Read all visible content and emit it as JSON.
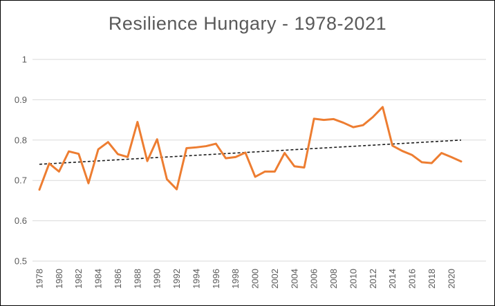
{
  "window": {
    "background": "#ffffff",
    "border_color": "#000000"
  },
  "chart_data": {
    "type": "line",
    "title": "Resilience Hungary - 1978-2021",
    "xlabel": "",
    "ylabel": "",
    "x": [
      1978,
      1979,
      1980,
      1981,
      1982,
      1983,
      1984,
      1985,
      1986,
      1987,
      1988,
      1989,
      1990,
      1991,
      1992,
      1993,
      1994,
      1995,
      1996,
      1997,
      1998,
      1999,
      2000,
      2001,
      2002,
      2003,
      2004,
      2005,
      2006,
      2007,
      2008,
      2009,
      2010,
      2011,
      2012,
      2013,
      2014,
      2015,
      2016,
      2017,
      2018,
      2019,
      2020,
      2021
    ],
    "series": [
      {
        "name": "Resilience",
        "color": "#ED7D31",
        "values": [
          0.677,
          0.742,
          0.722,
          0.772,
          0.766,
          0.693,
          0.777,
          0.795,
          0.765,
          0.758,
          0.845,
          0.748,
          0.802,
          0.703,
          0.678,
          0.78,
          0.782,
          0.785,
          0.791,
          0.755,
          0.758,
          0.769,
          0.709,
          0.722,
          0.722,
          0.768,
          0.735,
          0.732,
          0.853,
          0.85,
          0.852,
          0.843,
          0.832,
          0.837,
          0.857,
          0.882,
          0.786,
          0.773,
          0.763,
          0.745,
          0.743,
          0.768,
          0.758,
          0.747
        ]
      }
    ],
    "trendline": {
      "style": "dashed",
      "color": "#1a1a1a",
      "start": {
        "x": 1978,
        "y": 0.74
      },
      "end": {
        "x": 2021,
        "y": 0.8
      }
    },
    "ylim": [
      0.5,
      1.0
    ],
    "yticks": [
      1,
      0.9,
      0.8,
      0.7,
      0.6,
      0.5
    ],
    "ytick_labels": [
      "1",
      "0.9",
      "0.8",
      "0.7",
      "0.6",
      "0.5"
    ],
    "xtick_labels": [
      "1978",
      "1980",
      "1982",
      "1984",
      "1986",
      "1988",
      "1990",
      "1992",
      "1994",
      "1996",
      "1998",
      "2000",
      "2002",
      "2004",
      "2006",
      "2008",
      "2010",
      "2012",
      "2014",
      "2016",
      "2018",
      "2020"
    ],
    "grid": "horizontal",
    "gridline_color": "#D9D9D9",
    "axis_text_color": "#595959",
    "title_color": "#595959",
    "legend": "none"
  }
}
